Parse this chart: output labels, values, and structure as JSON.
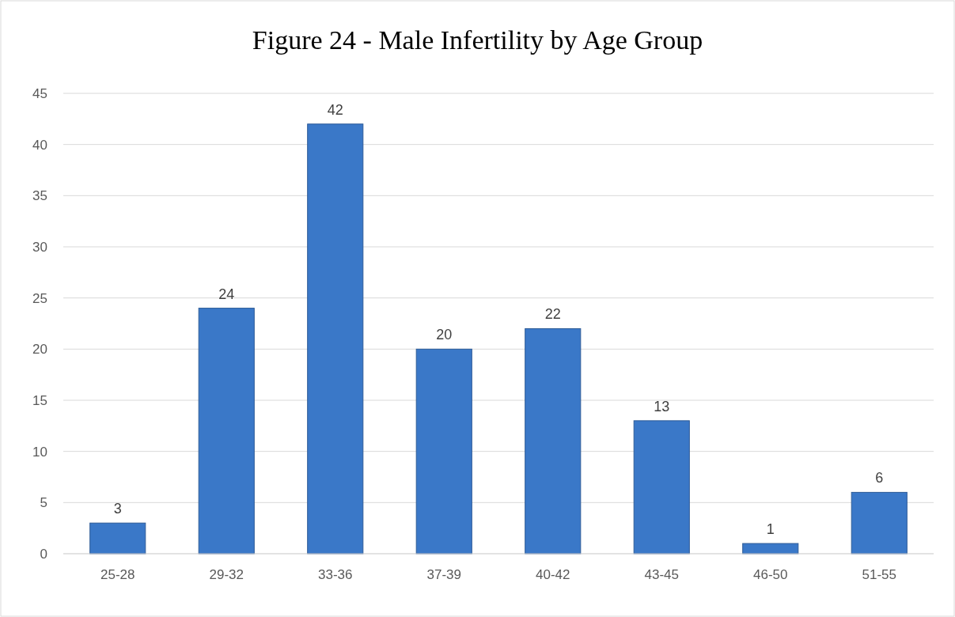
{
  "chart_data": {
    "type": "bar",
    "title": "Figure 24 - Male Infertility by Age Group",
    "categories": [
      "25-28",
      "29-32",
      "33-36",
      "37-39",
      "40-42",
      "43-45",
      "46-50",
      "51-55"
    ],
    "values": [
      3,
      24,
      42,
      20,
      22,
      13,
      1,
      6
    ],
    "color": "#3a78c8",
    "ylim": [
      0,
      45
    ],
    "yticks": [
      0,
      5,
      10,
      15,
      20,
      25,
      30,
      35,
      40,
      45
    ],
    "grid": "y",
    "data_labels": true
  }
}
